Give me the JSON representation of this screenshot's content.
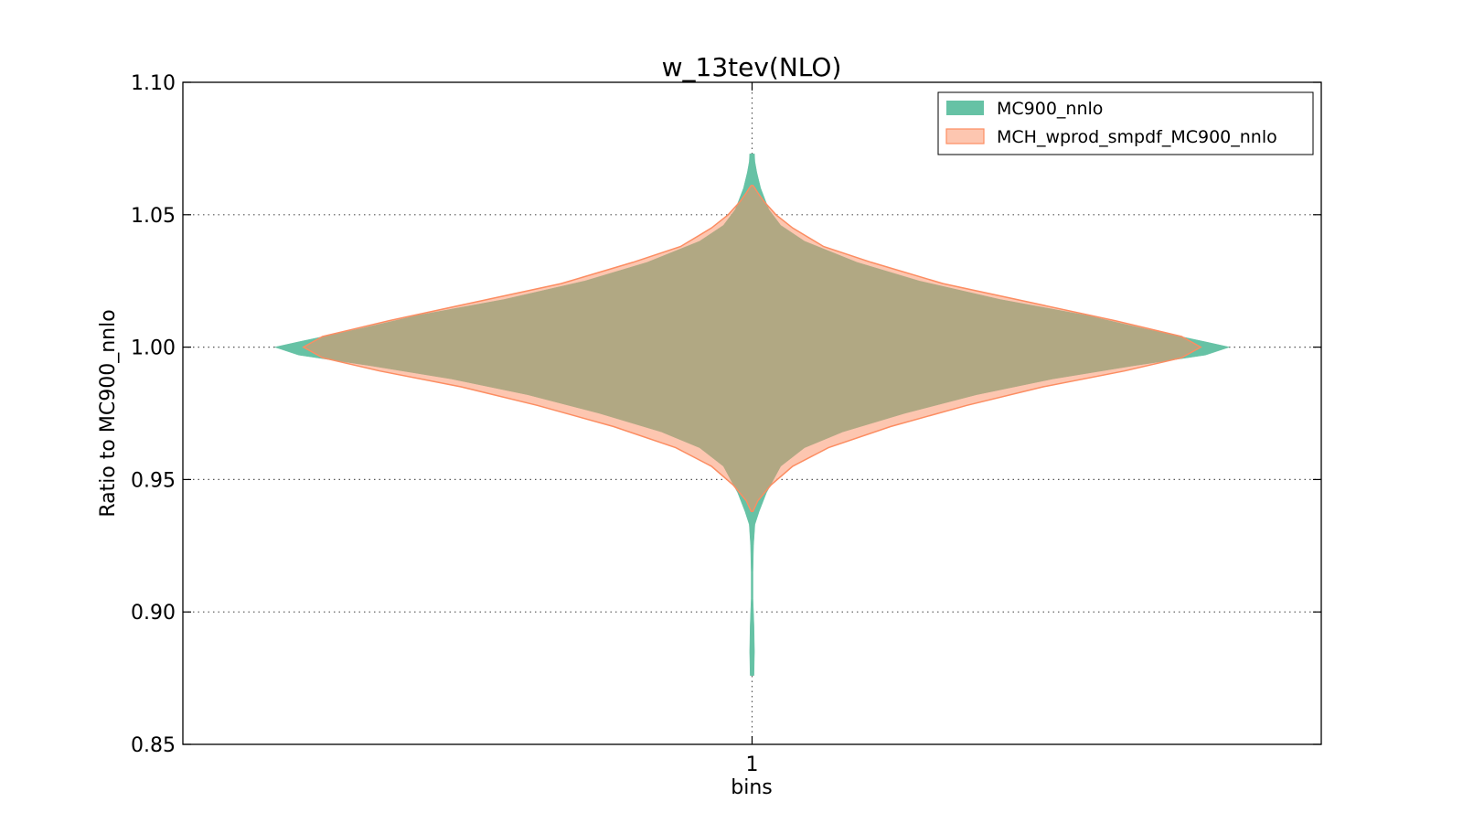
{
  "chart_data": {
    "type": "violin",
    "title": "w_13tev(NLO)",
    "xlabel": "bins",
    "ylabel": "Ratio to MC900_nnlo",
    "categories": [
      "1"
    ],
    "ylim": [
      0.85,
      1.1
    ],
    "yticks": [
      0.85,
      0.9,
      0.95,
      1.0,
      1.05,
      1.1
    ],
    "ytick_labels": [
      "0.85",
      "0.90",
      "0.95",
      "1.00",
      "1.05",
      "1.10"
    ],
    "grid": true,
    "legend_position": "top-right",
    "series": [
      {
        "name": "MC900_nnlo",
        "color": "#66c2a5",
        "density": [
          [
            0.876,
            0.004
          ],
          [
            0.885,
            0.005
          ],
          [
            0.895,
            0.004
          ],
          [
            0.905,
            0.002
          ],
          [
            0.915,
            0.002
          ],
          [
            0.925,
            0.003
          ],
          [
            0.933,
            0.006
          ],
          [
            0.938,
            0.015
          ],
          [
            0.945,
            0.03
          ],
          [
            0.955,
            0.06
          ],
          [
            0.962,
            0.11
          ],
          [
            0.968,
            0.19
          ],
          [
            0.975,
            0.32
          ],
          [
            0.982,
            0.47
          ],
          [
            0.988,
            0.63
          ],
          [
            0.993,
            0.8
          ],
          [
            0.997,
            0.95
          ],
          [
            1.0,
            1.0
          ],
          [
            1.002,
            0.95
          ],
          [
            1.007,
            0.82
          ],
          [
            1.012,
            0.7
          ],
          [
            1.018,
            0.52
          ],
          [
            1.025,
            0.35
          ],
          [
            1.032,
            0.22
          ],
          [
            1.04,
            0.11
          ],
          [
            1.046,
            0.06
          ],
          [
            1.052,
            0.035
          ],
          [
            1.06,
            0.018
          ],
          [
            1.066,
            0.01
          ],
          [
            1.07,
            0.006
          ],
          [
            1.073,
            0.005
          ]
        ]
      },
      {
        "name": "MCH_wprod_smpdf_MC900_nnlo",
        "color": "#fc8d62",
        "density": [
          [
            0.938,
            0.002
          ],
          [
            0.942,
            0.012
          ],
          [
            0.948,
            0.04
          ],
          [
            0.955,
            0.085
          ],
          [
            0.962,
            0.16
          ],
          [
            0.97,
            0.29
          ],
          [
            0.978,
            0.45
          ],
          [
            0.985,
            0.61
          ],
          [
            0.991,
            0.78
          ],
          [
            0.996,
            0.9
          ],
          [
            1.0,
            0.94
          ],
          [
            1.004,
            0.9
          ],
          [
            1.01,
            0.76
          ],
          [
            1.017,
            0.58
          ],
          [
            1.024,
            0.4
          ],
          [
            1.032,
            0.25
          ],
          [
            1.038,
            0.15
          ],
          [
            1.045,
            0.085
          ],
          [
            1.05,
            0.05
          ],
          [
            1.055,
            0.025
          ],
          [
            1.058,
            0.013
          ],
          [
            1.06,
            0.006
          ],
          [
            1.061,
            0.002
          ]
        ]
      }
    ]
  }
}
